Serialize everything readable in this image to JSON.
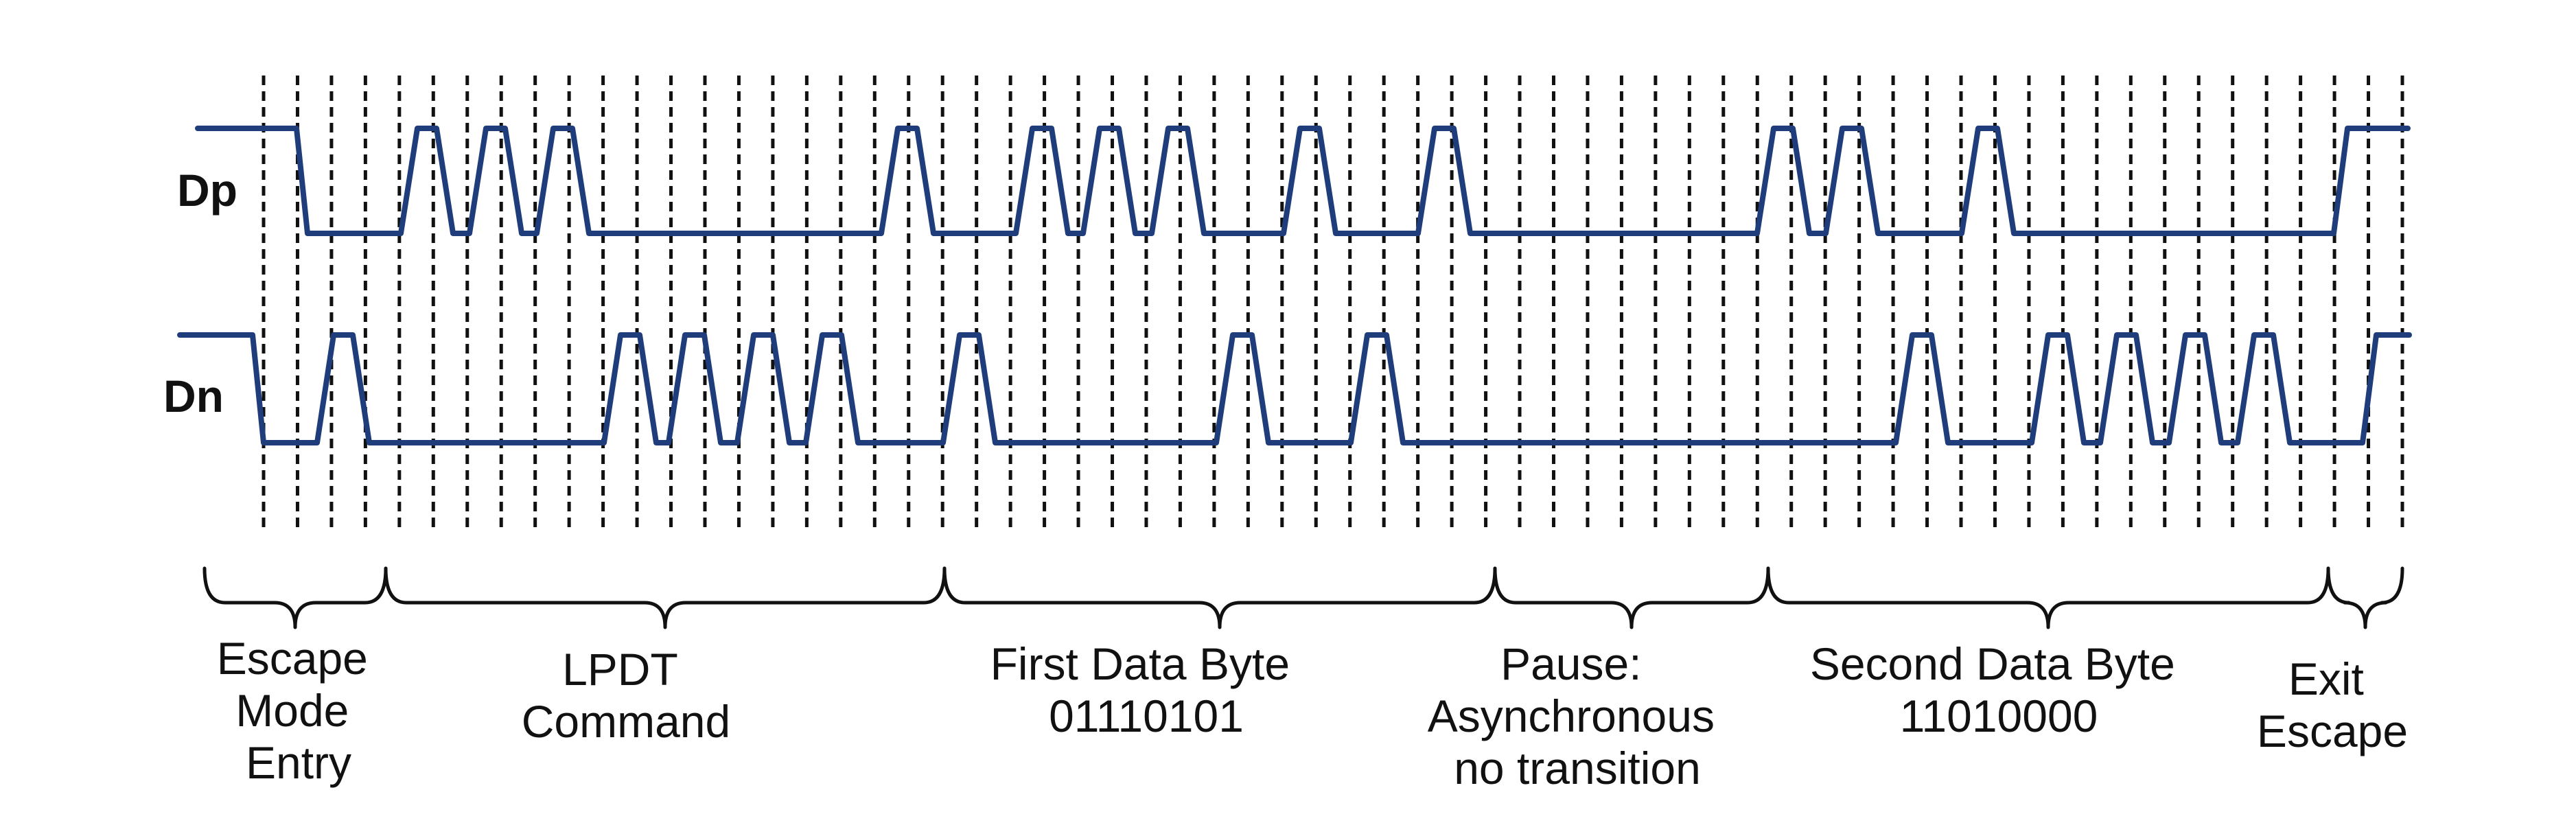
{
  "signals": [
    {
      "name": "Dp"
    },
    {
      "name": "Dn"
    }
  ],
  "segments": [
    {
      "lines": [
        "Escape",
        "Mode",
        "Entry"
      ]
    },
    {
      "lines": [
        "LPDT",
        "Command"
      ]
    },
    {
      "lines": [
        "First Data Byte",
        "01110101"
      ]
    },
    {
      "lines": [
        "Pause:",
        "Asynchronous",
        "no transition"
      ]
    },
    {
      "lines": [
        "Second Data Byte",
        "11010000"
      ]
    },
    {
      "lines": [
        "Exit",
        "Escape"
      ]
    }
  ],
  "colors": {
    "waveform": "#1f3d7a",
    "grid": "#111111",
    "text": "#111111"
  }
}
